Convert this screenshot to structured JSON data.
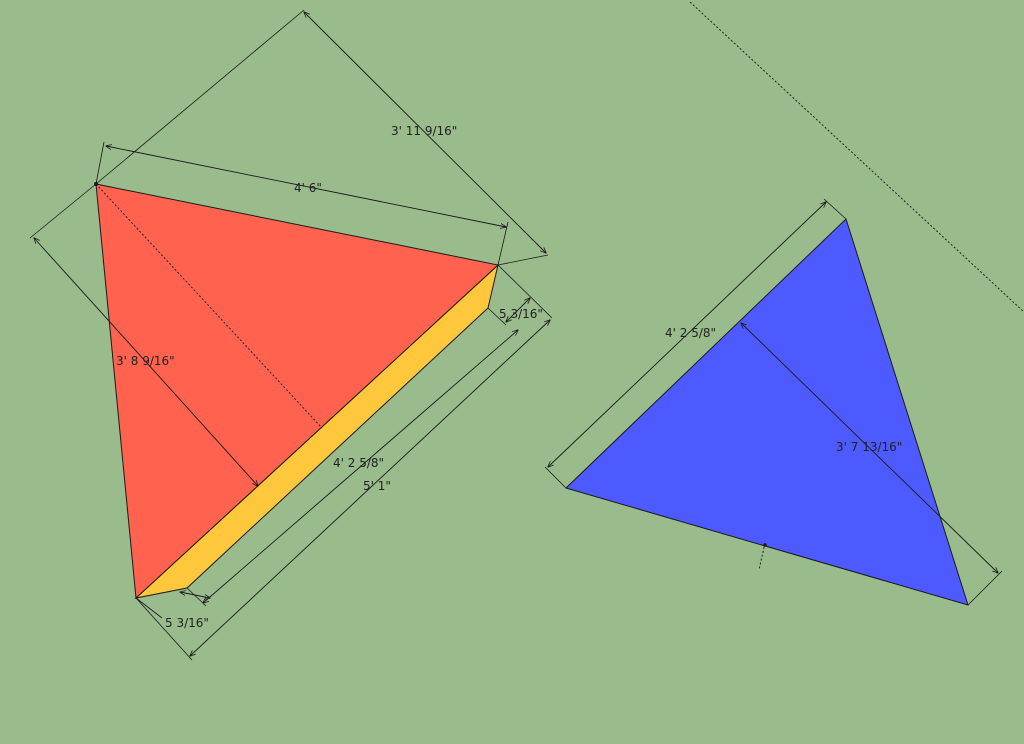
{
  "colors": {
    "background": "#9abb8c",
    "red_face": "#ff6350",
    "yellow_bevel": "#ffc83c",
    "blue_face": "#4d5aff",
    "line": "#1a1a1a"
  },
  "dimensions": {
    "red_height_outer": "3' 11 9/16\"",
    "red_top_edge": "4' 6\"",
    "red_right_thickness": "5 3/16\"",
    "red_height_inner": "3' 8 9/16\"",
    "red_long_edge": "4' 2 5/8\"",
    "red_long_edge_total": "5' 1\"",
    "red_bottom_thickness": "5 3/16\"",
    "blue_long_edge": "4' 2 5/8\"",
    "blue_height": "3' 7 13/16\""
  }
}
